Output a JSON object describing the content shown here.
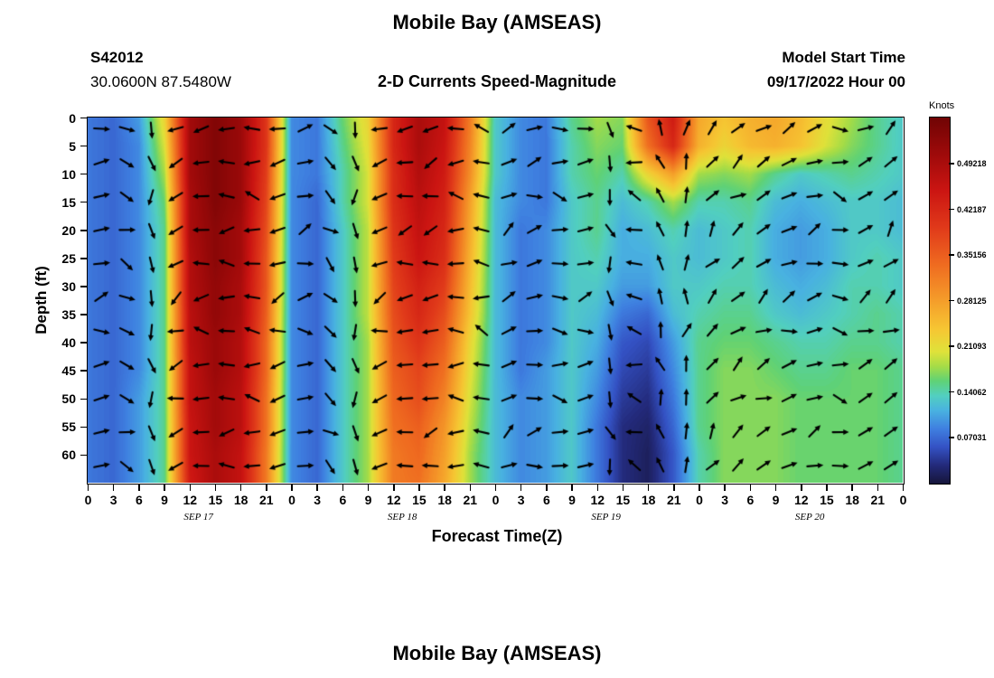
{
  "page": {
    "title_top": "Mobile Bay (AMSEAS)",
    "title_bottom": "Mobile Bay (AMSEAS)"
  },
  "header": {
    "station_id": "S42012",
    "coordinates": "30.0600N  87.5480W",
    "plot_title": "2-D Currents Speed-Magnitude",
    "model_start_label": "Model Start Time",
    "model_start_value": "09/17/2022 Hour 00"
  },
  "axes": {
    "x_label": "Forecast Time(Z)",
    "y_label": "Depth (ft)",
    "x_ticks": [
      "0",
      "3",
      "6",
      "9",
      "12",
      "15",
      "18",
      "21",
      "0",
      "3",
      "6",
      "9",
      "12",
      "15",
      "18",
      "21",
      "0",
      "3",
      "6",
      "9",
      "12",
      "15",
      "18",
      "21",
      "0",
      "3",
      "6",
      "9",
      "12",
      "15",
      "18",
      "21",
      "0"
    ],
    "x_day_labels": [
      "SEP 17",
      "SEP 18",
      "SEP 19",
      "SEP 20"
    ],
    "y_ticks": [
      "0",
      "5",
      "10",
      "15",
      "20",
      "25",
      "30",
      "35",
      "40",
      "45",
      "50",
      "55",
      "60"
    ]
  },
  "colorbar": {
    "title": "Knots",
    "max": 0.5625,
    "labels": [
      "0.49218",
      "0.42187",
      "0.35156",
      "0.28125",
      "0.21093",
      "0.14062",
      "0.07031"
    ],
    "stops": [
      [
        0.0,
        "#16163a"
      ],
      [
        0.05,
        "#232a7a"
      ],
      [
        0.1,
        "#3452c4"
      ],
      [
        0.15,
        "#3f7fe0"
      ],
      [
        0.2,
        "#49b2e0"
      ],
      [
        0.24,
        "#52cfc0"
      ],
      [
        0.28,
        "#5fd276"
      ],
      [
        0.32,
        "#a5dc47"
      ],
      [
        0.36,
        "#dfe23a"
      ],
      [
        0.42,
        "#f6c733"
      ],
      [
        0.5,
        "#f59d2a"
      ],
      [
        0.6,
        "#ef6a20"
      ],
      [
        0.7,
        "#e0391a"
      ],
      [
        0.8,
        "#cb1512"
      ],
      [
        0.9,
        "#9e0a0a"
      ],
      [
        1.0,
        "#700404"
      ]
    ]
  },
  "chart_data": {
    "type": "heatmap",
    "title": "2-D Currents Speed-Magnitude",
    "units": "knots",
    "xlabel": "Forecast Time(Z)",
    "ylabel": "Depth (ft)",
    "x_hours": [
      0,
      3,
      6,
      9,
      12,
      15,
      18,
      21,
      24,
      27,
      30,
      33,
      36,
      39,
      42,
      45,
      48,
      51,
      54,
      57,
      60,
      63,
      66,
      69,
      72,
      75,
      78,
      81,
      84,
      87,
      90,
      93,
      96
    ],
    "depths_ft": [
      0,
      5,
      10,
      15,
      20,
      25,
      30,
      35,
      40,
      45,
      50,
      55,
      60,
      65
    ],
    "value_min": 0,
    "value_max": 0.5625,
    "values": [
      [
        0.08,
        0.07,
        0.1,
        0.22,
        0.5,
        0.54,
        0.51,
        0.4,
        0.09,
        0.08,
        0.16,
        0.22,
        0.42,
        0.49,
        0.46,
        0.32,
        0.13,
        0.09,
        0.08,
        0.15,
        0.18,
        0.17,
        0.36,
        0.44,
        0.27,
        0.24,
        0.26,
        0.27,
        0.25,
        0.21,
        0.18,
        0.15,
        0.13
      ],
      [
        0.08,
        0.07,
        0.09,
        0.2,
        0.5,
        0.54,
        0.51,
        0.4,
        0.09,
        0.08,
        0.15,
        0.21,
        0.42,
        0.49,
        0.45,
        0.31,
        0.13,
        0.09,
        0.08,
        0.14,
        0.17,
        0.16,
        0.33,
        0.42,
        0.26,
        0.22,
        0.25,
        0.26,
        0.24,
        0.2,
        0.17,
        0.15,
        0.13
      ],
      [
        0.08,
        0.07,
        0.09,
        0.18,
        0.5,
        0.54,
        0.51,
        0.39,
        0.09,
        0.08,
        0.14,
        0.2,
        0.41,
        0.48,
        0.44,
        0.3,
        0.13,
        0.09,
        0.08,
        0.14,
        0.16,
        0.14,
        0.22,
        0.28,
        0.18,
        0.17,
        0.18,
        0.15,
        0.13,
        0.14,
        0.15,
        0.14,
        0.13
      ],
      [
        0.08,
        0.07,
        0.09,
        0.16,
        0.49,
        0.54,
        0.51,
        0.38,
        0.09,
        0.07,
        0.14,
        0.2,
        0.41,
        0.47,
        0.43,
        0.28,
        0.12,
        0.09,
        0.08,
        0.13,
        0.15,
        0.12,
        0.14,
        0.18,
        0.14,
        0.14,
        0.15,
        0.12,
        0.11,
        0.12,
        0.13,
        0.13,
        0.12
      ],
      [
        0.08,
        0.07,
        0.09,
        0.15,
        0.49,
        0.53,
        0.5,
        0.37,
        0.09,
        0.07,
        0.13,
        0.19,
        0.4,
        0.46,
        0.42,
        0.27,
        0.12,
        0.08,
        0.09,
        0.13,
        0.15,
        0.11,
        0.12,
        0.14,
        0.12,
        0.13,
        0.14,
        0.11,
        0.1,
        0.11,
        0.13,
        0.13,
        0.12
      ],
      [
        0.08,
        0.07,
        0.09,
        0.15,
        0.48,
        0.53,
        0.5,
        0.36,
        0.09,
        0.07,
        0.13,
        0.19,
        0.39,
        0.45,
        0.41,
        0.26,
        0.12,
        0.08,
        0.09,
        0.13,
        0.14,
        0.11,
        0.11,
        0.13,
        0.12,
        0.13,
        0.14,
        0.11,
        0.1,
        0.11,
        0.13,
        0.14,
        0.13
      ],
      [
        0.08,
        0.07,
        0.09,
        0.15,
        0.48,
        0.52,
        0.49,
        0.36,
        0.09,
        0.07,
        0.13,
        0.19,
        0.38,
        0.43,
        0.39,
        0.25,
        0.12,
        0.08,
        0.09,
        0.13,
        0.13,
        0.1,
        0.1,
        0.13,
        0.13,
        0.14,
        0.14,
        0.12,
        0.11,
        0.12,
        0.14,
        0.14,
        0.13
      ],
      [
        0.08,
        0.07,
        0.09,
        0.15,
        0.47,
        0.52,
        0.49,
        0.35,
        0.09,
        0.07,
        0.13,
        0.19,
        0.37,
        0.42,
        0.37,
        0.24,
        0.12,
        0.08,
        0.09,
        0.13,
        0.12,
        0.08,
        0.07,
        0.12,
        0.14,
        0.15,
        0.15,
        0.13,
        0.12,
        0.13,
        0.14,
        0.15,
        0.14
      ],
      [
        0.08,
        0.07,
        0.09,
        0.15,
        0.47,
        0.51,
        0.48,
        0.34,
        0.09,
        0.07,
        0.13,
        0.18,
        0.36,
        0.4,
        0.35,
        0.22,
        0.12,
        0.08,
        0.09,
        0.13,
        0.11,
        0.06,
        0.05,
        0.1,
        0.15,
        0.16,
        0.16,
        0.15,
        0.14,
        0.14,
        0.15,
        0.15,
        0.14
      ],
      [
        0.08,
        0.07,
        0.09,
        0.15,
        0.46,
        0.51,
        0.48,
        0.34,
        0.09,
        0.07,
        0.13,
        0.18,
        0.35,
        0.38,
        0.33,
        0.21,
        0.12,
        0.08,
        0.1,
        0.13,
        0.1,
        0.05,
        0.04,
        0.09,
        0.15,
        0.17,
        0.17,
        0.16,
        0.15,
        0.15,
        0.16,
        0.16,
        0.15
      ],
      [
        0.08,
        0.07,
        0.1,
        0.15,
        0.46,
        0.5,
        0.47,
        0.33,
        0.09,
        0.07,
        0.13,
        0.18,
        0.34,
        0.37,
        0.31,
        0.2,
        0.12,
        0.09,
        0.1,
        0.13,
        0.09,
        0.04,
        0.03,
        0.08,
        0.15,
        0.17,
        0.17,
        0.17,
        0.16,
        0.16,
        0.16,
        0.16,
        0.15
      ],
      [
        0.08,
        0.07,
        0.1,
        0.15,
        0.45,
        0.5,
        0.47,
        0.33,
        0.09,
        0.07,
        0.13,
        0.18,
        0.33,
        0.35,
        0.29,
        0.19,
        0.12,
        0.09,
        0.1,
        0.13,
        0.08,
        0.03,
        0.02,
        0.07,
        0.15,
        0.17,
        0.17,
        0.17,
        0.16,
        0.16,
        0.16,
        0.16,
        0.15
      ],
      [
        0.08,
        0.07,
        0.1,
        0.15,
        0.45,
        0.49,
        0.46,
        0.32,
        0.09,
        0.07,
        0.13,
        0.18,
        0.32,
        0.34,
        0.28,
        0.18,
        0.12,
        0.09,
        0.1,
        0.13,
        0.08,
        0.03,
        0.015,
        0.06,
        0.14,
        0.17,
        0.17,
        0.17,
        0.16,
        0.16,
        0.16,
        0.16,
        0.15
      ],
      [
        0.08,
        0.07,
        0.1,
        0.15,
        0.44,
        0.49,
        0.46,
        0.32,
        0.09,
        0.07,
        0.13,
        0.18,
        0.32,
        0.33,
        0.27,
        0.18,
        0.12,
        0.09,
        0.1,
        0.13,
        0.08,
        0.03,
        0.015,
        0.06,
        0.14,
        0.17,
        0.17,
        0.17,
        0.16,
        0.16,
        0.16,
        0.16,
        0.15
      ]
    ],
    "arrows": {
      "row_depths_ft": [
        2,
        8,
        14,
        20,
        26,
        32,
        38,
        44,
        50,
        56,
        62
      ],
      "col_hours": [
        1.5,
        4.5,
        7.5,
        10.5,
        13.5,
        16.5,
        19.5,
        22.5,
        25.5,
        28.5,
        31.5,
        34.5,
        37.5,
        40.5,
        43.5,
        46.5,
        49.5,
        52.5,
        55.5,
        58.5,
        61.5,
        64.5,
        67.5,
        70.5,
        73.5,
        76.5,
        79.5,
        82.5,
        85.5,
        88.5,
        91.5,
        94.5
      ],
      "base_angles_deg": [
        15,
        -25,
        -85,
        205,
        185,
        180,
        172,
        195,
        10,
        -40,
        -85,
        200,
        185,
        195,
        180,
        165,
        25,
        10,
        -5,
        15,
        -80,
        160,
        110,
        85,
        50,
        35,
        30,
        25,
        20,
        -15,
        25,
        40
      ],
      "row_offsets_deg": [
        0,
        8,
        -10,
        14,
        -6,
        10,
        -14,
        6,
        -8,
        12,
        -4
      ],
      "jitter_deg": 18
    }
  }
}
